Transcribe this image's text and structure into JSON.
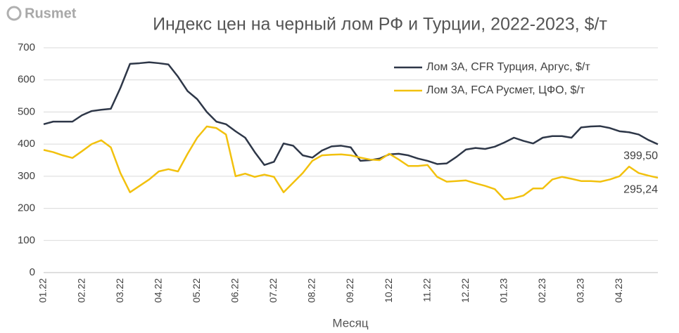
{
  "logo": "Rusmet",
  "chart_data": {
    "type": "line",
    "title": "Индекс цен на черный лом РФ и Турции, 2022-2023, $/т",
    "x_label": "Месяц",
    "categories": [
      "01.22",
      null,
      null,
      null,
      "02.22",
      null,
      null,
      null,
      "03.22",
      null,
      null,
      null,
      "04.22",
      null,
      null,
      null,
      "05.22",
      null,
      null,
      null,
      "06.22",
      null,
      null,
      null,
      "07.22",
      null,
      null,
      null,
      "08.22",
      null,
      null,
      null,
      "09.22",
      null,
      null,
      null,
      "10.22",
      null,
      null,
      null,
      "11.22",
      null,
      null,
      null,
      "12.22",
      null,
      null,
      null,
      "01.23",
      null,
      null,
      null,
      "02.23",
      null,
      null,
      null,
      "03.23",
      null,
      null,
      null,
      "04.23",
      null,
      null,
      null,
      null
    ],
    "series": [
      {
        "name": "Лом 3А, CFR Турция, Аргус, $/т",
        "color": "#2e3748",
        "values": [
          462,
          470,
          470,
          470,
          490,
          503,
          507,
          510,
          575,
          650,
          652,
          655,
          652,
          648,
          610,
          565,
          540,
          500,
          470,
          462,
          440,
          420,
          375,
          335,
          345,
          402,
          395,
          365,
          358,
          380,
          393,
          395,
          390,
          348,
          350,
          355,
          368,
          370,
          365,
          355,
          348,
          338,
          340,
          360,
          383,
          388,
          385,
          392,
          405,
          420,
          410,
          402,
          420,
          425,
          425,
          420,
          452,
          455,
          456,
          450,
          440,
          437,
          430,
          413,
          399.5
        ],
        "value_labels": [
          null,
          null,
          null,
          null,
          null,
          null,
          null,
          null,
          null,
          null,
          null,
          null,
          null,
          null,
          null,
          null,
          null,
          null,
          null,
          null,
          null,
          null,
          null,
          null,
          null,
          null,
          null,
          null,
          null,
          null,
          null,
          null,
          null,
          null,
          null,
          null,
          null,
          null,
          null,
          null,
          null,
          null,
          null,
          null,
          null,
          null,
          null,
          null,
          null,
          null,
          null,
          null,
          null,
          null,
          null,
          null,
          null,
          null,
          null,
          null,
          null,
          null,
          null,
          null,
          "399,50"
        ]
      },
      {
        "name": "Лом 3А, FCA Русмет, ЦФО, $/т",
        "color": "#f2c10e",
        "values": [
          382,
          375,
          365,
          357,
          378,
          400,
          412,
          390,
          310,
          250,
          270,
          290,
          315,
          322,
          315,
          370,
          420,
          455,
          450,
          430,
          300,
          308,
          298,
          305,
          298,
          250,
          280,
          310,
          348,
          365,
          367,
          368,
          365,
          358,
          352,
          350,
          370,
          352,
          332,
          332,
          335,
          298,
          283,
          285,
          287,
          278,
          270,
          260,
          228,
          232,
          240,
          262,
          262,
          290,
          298,
          292,
          285,
          285,
          283,
          290,
          300,
          330,
          310,
          302,
          295.24
        ],
        "value_labels": [
          null,
          null,
          null,
          null,
          null,
          null,
          null,
          null,
          null,
          null,
          null,
          null,
          null,
          null,
          null,
          null,
          null,
          null,
          null,
          null,
          null,
          null,
          null,
          null,
          null,
          null,
          null,
          null,
          null,
          null,
          null,
          null,
          null,
          null,
          null,
          null,
          null,
          null,
          null,
          null,
          null,
          null,
          null,
          null,
          null,
          null,
          null,
          null,
          null,
          null,
          null,
          null,
          null,
          null,
          null,
          null,
          null,
          null,
          null,
          null,
          null,
          null,
          null,
          null,
          "295,24"
        ]
      }
    ],
    "ylim": [
      0,
      700
    ],
    "yticks": [
      0,
      100,
      200,
      300,
      400,
      500,
      600,
      700
    ],
    "grid": true,
    "legend": "top-right"
  }
}
